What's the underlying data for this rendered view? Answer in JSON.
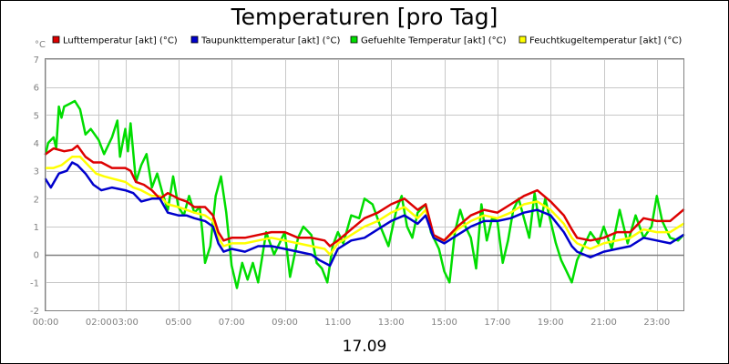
{
  "chart_data": {
    "type": "line",
    "title": "Temperaturen [pro Tag]",
    "date_label": "17.09",
    "y_unit": "°C",
    "xlabel": "",
    "ylabel": "°C",
    "ylim": [
      -2,
      7
    ],
    "yticks": [
      "-2",
      "-1",
      "0",
      "1",
      "2",
      "3",
      "4",
      "5",
      "6",
      "7"
    ],
    "xlim": [
      0,
      24
    ],
    "xticks": [
      {
        "hour": 0,
        "label": "00:00"
      },
      {
        "hour": 2,
        "label": "02:00"
      },
      {
        "hour": 3,
        "label": "03:00"
      },
      {
        "hour": 5,
        "label": "05:00"
      },
      {
        "hour": 7,
        "label": "07:00"
      },
      {
        "hour": 9,
        "label": "09:00"
      },
      {
        "hour": 11,
        "label": "11:00"
      },
      {
        "hour": 13,
        "label": "13:00"
      },
      {
        "hour": 15,
        "label": "15:00"
      },
      {
        "hour": 17,
        "label": "17:00"
      },
      {
        "hour": 19,
        "label": "19:00"
      },
      {
        "hour": 21,
        "label": "21:00"
      },
      {
        "hour": 23,
        "label": "23:00"
      }
    ],
    "legend_position": "top",
    "grid": true,
    "series": [
      {
        "name": "Lufttemperatur [akt] (°C)",
        "color": "#dd0000",
        "points": [
          [
            0,
            3.6
          ],
          [
            0.3,
            3.8
          ],
          [
            0.7,
            3.7
          ],
          [
            1.0,
            3.75
          ],
          [
            1.2,
            3.9
          ],
          [
            1.5,
            3.5
          ],
          [
            1.8,
            3.3
          ],
          [
            2.1,
            3.3
          ],
          [
            2.5,
            3.1
          ],
          [
            3.0,
            3.1
          ],
          [
            3.2,
            3.0
          ],
          [
            3.4,
            2.6
          ],
          [
            3.7,
            2.5
          ],
          [
            4.0,
            2.3
          ],
          [
            4.3,
            2.0
          ],
          [
            4.6,
            2.2
          ],
          [
            5.0,
            2.0
          ],
          [
            5.3,
            1.9
          ],
          [
            5.6,
            1.7
          ],
          [
            6.0,
            1.7
          ],
          [
            6.3,
            1.4
          ],
          [
            6.5,
            0.8
          ],
          [
            6.7,
            0.5
          ],
          [
            7.0,
            0.6
          ],
          [
            7.5,
            0.6
          ],
          [
            8.0,
            0.7
          ],
          [
            8.5,
            0.8
          ],
          [
            9.0,
            0.8
          ],
          [
            9.5,
            0.6
          ],
          [
            10.0,
            0.6
          ],
          [
            10.5,
            0.5
          ],
          [
            10.7,
            0.3
          ],
          [
            11.0,
            0.5
          ],
          [
            11.5,
            0.9
          ],
          [
            12.0,
            1.3
          ],
          [
            12.5,
            1.5
          ],
          [
            13.0,
            1.8
          ],
          [
            13.5,
            2.0
          ],
          [
            14.0,
            1.6
          ],
          [
            14.3,
            1.8
          ],
          [
            14.6,
            0.7
          ],
          [
            15.0,
            0.5
          ],
          [
            15.5,
            1.0
          ],
          [
            16.0,
            1.4
          ],
          [
            16.5,
            1.6
          ],
          [
            17.0,
            1.5
          ],
          [
            17.5,
            1.8
          ],
          [
            18.0,
            2.1
          ],
          [
            18.5,
            2.3
          ],
          [
            19.0,
            1.9
          ],
          [
            19.5,
            1.4
          ],
          [
            19.8,
            0.9
          ],
          [
            20.0,
            0.6
          ],
          [
            20.5,
            0.5
          ],
          [
            21.0,
            0.6
          ],
          [
            21.5,
            0.8
          ],
          [
            22.0,
            0.8
          ],
          [
            22.5,
            1.3
          ],
          [
            23.0,
            1.2
          ],
          [
            23.5,
            1.2
          ],
          [
            24.0,
            1.6
          ]
        ]
      },
      {
        "name": "Taupunkttemperatur [akt] (°C)",
        "color": "#0000cc",
        "points": [
          [
            0,
            2.7
          ],
          [
            0.2,
            2.4
          ],
          [
            0.5,
            2.9
          ],
          [
            0.8,
            3.0
          ],
          [
            1.0,
            3.3
          ],
          [
            1.2,
            3.2
          ],
          [
            1.5,
            2.9
          ],
          [
            1.8,
            2.5
          ],
          [
            2.1,
            2.3
          ],
          [
            2.5,
            2.4
          ],
          [
            3.0,
            2.3
          ],
          [
            3.3,
            2.2
          ],
          [
            3.6,
            1.9
          ],
          [
            4.0,
            2.0
          ],
          [
            4.3,
            2.0
          ],
          [
            4.6,
            1.5
          ],
          [
            5.0,
            1.4
          ],
          [
            5.3,
            1.4
          ],
          [
            5.6,
            1.3
          ],
          [
            6.0,
            1.2
          ],
          [
            6.3,
            1.0
          ],
          [
            6.5,
            0.4
          ],
          [
            6.7,
            0.1
          ],
          [
            7.0,
            0.2
          ],
          [
            7.5,
            0.1
          ],
          [
            8.0,
            0.3
          ],
          [
            8.5,
            0.3
          ],
          [
            9.0,
            0.2
          ],
          [
            9.5,
            0.1
          ],
          [
            10.0,
            0.0
          ],
          [
            10.3,
            -0.2
          ],
          [
            10.7,
            -0.4
          ],
          [
            11.0,
            0.2
          ],
          [
            11.5,
            0.5
          ],
          [
            12.0,
            0.6
          ],
          [
            12.5,
            0.9
          ],
          [
            13.0,
            1.2
          ],
          [
            13.5,
            1.4
          ],
          [
            14.0,
            1.1
          ],
          [
            14.3,
            1.4
          ],
          [
            14.6,
            0.6
          ],
          [
            15.0,
            0.4
          ],
          [
            15.5,
            0.7
          ],
          [
            16.0,
            1.0
          ],
          [
            16.5,
            1.2
          ],
          [
            17.0,
            1.2
          ],
          [
            17.5,
            1.3
          ],
          [
            18.0,
            1.5
          ],
          [
            18.5,
            1.6
          ],
          [
            19.0,
            1.4
          ],
          [
            19.5,
            0.8
          ],
          [
            19.8,
            0.3
          ],
          [
            20.0,
            0.1
          ],
          [
            20.5,
            -0.1
          ],
          [
            21.0,
            0.1
          ],
          [
            21.5,
            0.2
          ],
          [
            22.0,
            0.3
          ],
          [
            22.5,
            0.6
          ],
          [
            23.0,
            0.5
          ],
          [
            23.5,
            0.4
          ],
          [
            24.0,
            0.7
          ]
        ]
      },
      {
        "name": "Gefuehlte Temperatur [akt] (°C)",
        "color": "#00dd00",
        "points": [
          [
            0,
            3.6
          ],
          [
            0.1,
            4.0
          ],
          [
            0.3,
            4.2
          ],
          [
            0.4,
            3.8
          ],
          [
            0.5,
            5.3
          ],
          [
            0.6,
            4.9
          ],
          [
            0.7,
            5.3
          ],
          [
            0.9,
            5.4
          ],
          [
            1.1,
            5.5
          ],
          [
            1.3,
            5.2
          ],
          [
            1.5,
            4.3
          ],
          [
            1.7,
            4.5
          ],
          [
            2.0,
            4.1
          ],
          [
            2.2,
            3.6
          ],
          [
            2.5,
            4.2
          ],
          [
            2.7,
            4.8
          ],
          [
            2.8,
            3.5
          ],
          [
            3.0,
            4.5
          ],
          [
            3.1,
            3.7
          ],
          [
            3.2,
            4.7
          ],
          [
            3.4,
            2.6
          ],
          [
            3.6,
            3.2
          ],
          [
            3.8,
            3.6
          ],
          [
            4.0,
            2.4
          ],
          [
            4.2,
            2.9
          ],
          [
            4.4,
            2.2
          ],
          [
            4.6,
            1.6
          ],
          [
            4.8,
            2.8
          ],
          [
            5.0,
            1.7
          ],
          [
            5.2,
            1.4
          ],
          [
            5.4,
            2.1
          ],
          [
            5.6,
            1.5
          ],
          [
            5.8,
            1.7
          ],
          [
            5.9,
            0.8
          ],
          [
            6.0,
            -0.3
          ],
          [
            6.2,
            0.3
          ],
          [
            6.4,
            2.1
          ],
          [
            6.6,
            2.8
          ],
          [
            6.8,
            1.5
          ],
          [
            7.0,
            -0.4
          ],
          [
            7.2,
            -1.2
          ],
          [
            7.4,
            -0.3
          ],
          [
            7.6,
            -0.9
          ],
          [
            7.8,
            -0.3
          ],
          [
            8.0,
            -1.0
          ],
          [
            8.3,
            0.8
          ],
          [
            8.6,
            0.0
          ],
          [
            9.0,
            0.8
          ],
          [
            9.2,
            -0.8
          ],
          [
            9.5,
            0.6
          ],
          [
            9.7,
            1.0
          ],
          [
            10.0,
            0.7
          ],
          [
            10.2,
            -0.3
          ],
          [
            10.4,
            -0.5
          ],
          [
            10.6,
            -1.0
          ],
          [
            10.8,
            0.3
          ],
          [
            11.0,
            0.8
          ],
          [
            11.2,
            0.4
          ],
          [
            11.5,
            1.4
          ],
          [
            11.8,
            1.3
          ],
          [
            12.0,
            2.0
          ],
          [
            12.3,
            1.8
          ],
          [
            12.6,
            1.0
          ],
          [
            12.9,
            0.3
          ],
          [
            13.2,
            1.6
          ],
          [
            13.4,
            2.1
          ],
          [
            13.6,
            1.0
          ],
          [
            13.8,
            0.6
          ],
          [
            14.0,
            1.5
          ],
          [
            14.3,
            1.8
          ],
          [
            14.5,
            0.8
          ],
          [
            14.8,
            0.2
          ],
          [
            15.0,
            -0.6
          ],
          [
            15.2,
            -1.0
          ],
          [
            15.4,
            0.8
          ],
          [
            15.6,
            1.6
          ],
          [
            15.8,
            1.0
          ],
          [
            16.0,
            0.6
          ],
          [
            16.2,
            -0.5
          ],
          [
            16.4,
            1.8
          ],
          [
            16.6,
            0.5
          ],
          [
            16.8,
            1.3
          ],
          [
            17.0,
            1.2
          ],
          [
            17.2,
            -0.3
          ],
          [
            17.4,
            0.5
          ],
          [
            17.6,
            1.6
          ],
          [
            17.8,
            2.0
          ],
          [
            18.0,
            1.3
          ],
          [
            18.2,
            0.6
          ],
          [
            18.4,
            2.2
          ],
          [
            18.6,
            1.0
          ],
          [
            18.8,
            2.0
          ],
          [
            19.0,
            1.2
          ],
          [
            19.2,
            0.4
          ],
          [
            19.4,
            -0.2
          ],
          [
            19.6,
            -0.6
          ],
          [
            19.8,
            -1.0
          ],
          [
            20.0,
            -0.2
          ],
          [
            20.2,
            0.2
          ],
          [
            20.5,
            0.8
          ],
          [
            20.8,
            0.4
          ],
          [
            21.0,
            1.0
          ],
          [
            21.3,
            0.2
          ],
          [
            21.6,
            1.6
          ],
          [
            21.9,
            0.4
          ],
          [
            22.2,
            1.4
          ],
          [
            22.5,
            0.6
          ],
          [
            22.8,
            1.0
          ],
          [
            23.0,
            2.1
          ],
          [
            23.2,
            1.2
          ],
          [
            23.5,
            0.6
          ],
          [
            23.8,
            0.5
          ],
          [
            24.0,
            0.7
          ]
        ]
      },
      {
        "name": "Feuchtkugeltemperatur [akt] (°C)",
        "color": "#ffff00",
        "points": [
          [
            0,
            3.1
          ],
          [
            0.3,
            3.1
          ],
          [
            0.6,
            3.2
          ],
          [
            1.0,
            3.5
          ],
          [
            1.3,
            3.5
          ],
          [
            1.6,
            3.2
          ],
          [
            1.9,
            2.9
          ],
          [
            2.2,
            2.8
          ],
          [
            2.6,
            2.7
          ],
          [
            3.0,
            2.6
          ],
          [
            3.3,
            2.4
          ],
          [
            3.6,
            2.3
          ],
          [
            4.0,
            2.1
          ],
          [
            4.3,
            2.1
          ],
          [
            4.6,
            1.8
          ],
          [
            5.0,
            1.7
          ],
          [
            5.3,
            1.6
          ],
          [
            5.6,
            1.5
          ],
          [
            6.0,
            1.4
          ],
          [
            6.3,
            1.2
          ],
          [
            6.5,
            0.6
          ],
          [
            6.7,
            0.3
          ],
          [
            7.0,
            0.4
          ],
          [
            7.5,
            0.4
          ],
          [
            8.0,
            0.5
          ],
          [
            8.5,
            0.6
          ],
          [
            9.0,
            0.5
          ],
          [
            9.5,
            0.4
          ],
          [
            10.0,
            0.3
          ],
          [
            10.5,
            0.2
          ],
          [
            10.7,
            0.0
          ],
          [
            11.0,
            0.4
          ],
          [
            11.5,
            0.7
          ],
          [
            12.0,
            1.0
          ],
          [
            12.5,
            1.2
          ],
          [
            13.0,
            1.5
          ],
          [
            13.5,
            1.7
          ],
          [
            14.0,
            1.3
          ],
          [
            14.3,
            1.6
          ],
          [
            14.6,
            0.6
          ],
          [
            15.0,
            0.5
          ],
          [
            15.5,
            0.9
          ],
          [
            16.0,
            1.2
          ],
          [
            16.5,
            1.4
          ],
          [
            17.0,
            1.3
          ],
          [
            17.5,
            1.5
          ],
          [
            18.0,
            1.8
          ],
          [
            18.5,
            1.9
          ],
          [
            19.0,
            1.6
          ],
          [
            19.5,
            1.1
          ],
          [
            19.8,
            0.6
          ],
          [
            20.0,
            0.4
          ],
          [
            20.5,
            0.2
          ],
          [
            21.0,
            0.4
          ],
          [
            21.5,
            0.5
          ],
          [
            22.0,
            0.6
          ],
          [
            22.5,
            0.9
          ],
          [
            23.0,
            0.8
          ],
          [
            23.5,
            0.8
          ],
          [
            24.0,
            1.1
          ]
        ]
      }
    ]
  }
}
